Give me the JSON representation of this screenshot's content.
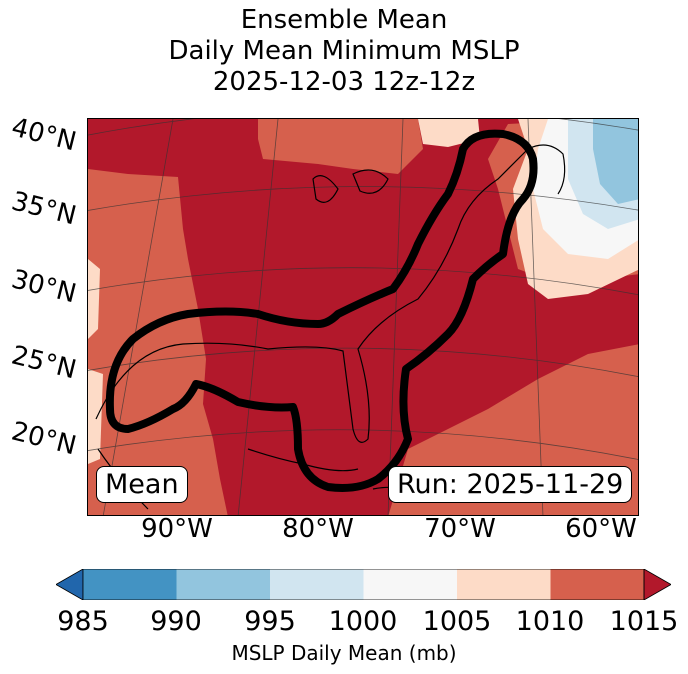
{
  "title": {
    "line1": "Ensemble Mean",
    "line2": "Daily Mean Minimum MSLP",
    "line3": "2025-12-03 12z-12z"
  },
  "map": {
    "projection": "lambert-conformal",
    "lat_labels": [
      "40°N",
      "35°N",
      "30°N",
      "25°N",
      "20°N"
    ],
    "lon_labels": [
      "90°W",
      "80°W",
      "70°W",
      "60°W"
    ],
    "left_box": "Mean",
    "right_box": "Run: 2025-11-29",
    "contour_description": "ensemble mean outline"
  },
  "colorbar": {
    "ticks": [
      "985",
      "990",
      "995",
      "1000",
      "1005",
      "1010",
      "1015"
    ],
    "colors": [
      "#2166ac",
      "#4393c3",
      "#92c5de",
      "#d1e5f0",
      "#f7f7f7",
      "#fddbc7",
      "#d6604d",
      "#b2182b"
    ],
    "label": "MSLP Daily Mean (mb)"
  }
}
